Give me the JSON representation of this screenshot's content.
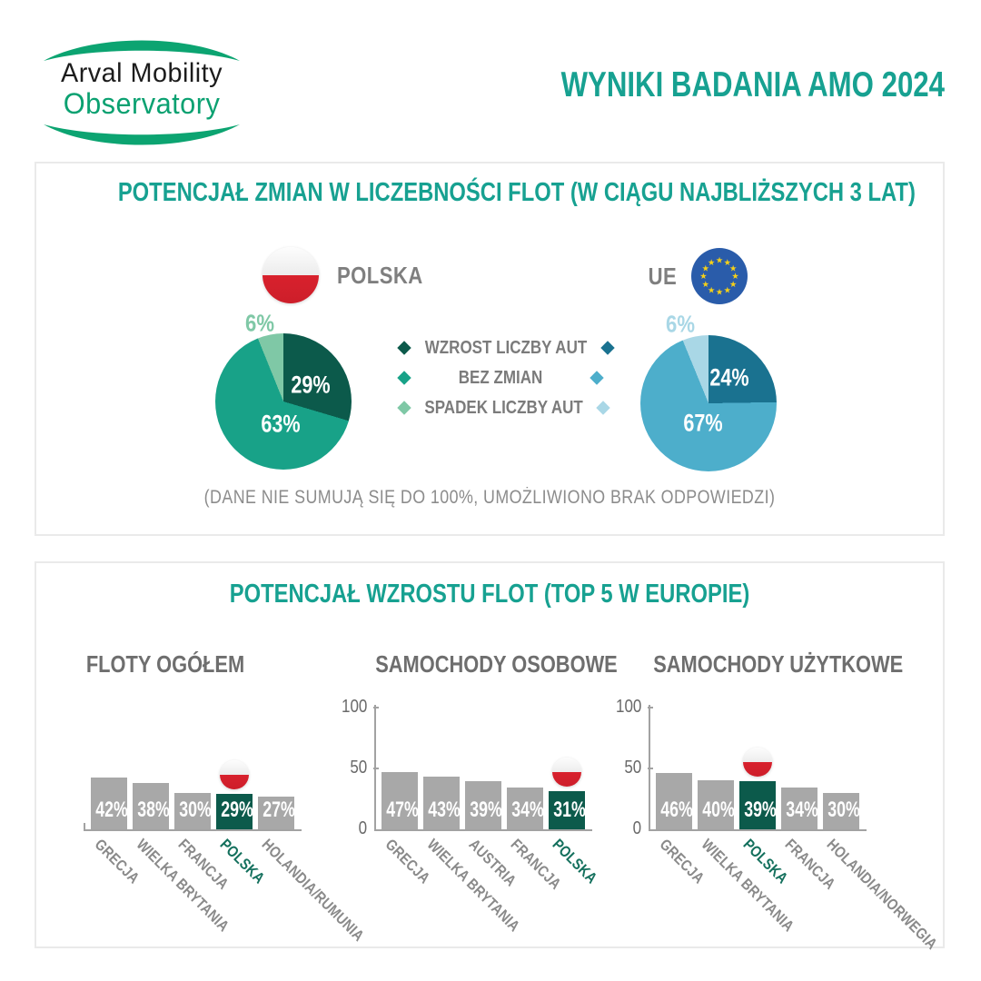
{
  "header": {
    "logo_line1": "Arval Mobility",
    "logo_line2": "Observatory",
    "title": "WYNIKI BADANIA AMO 2024"
  },
  "colors": {
    "teal_heading": "#17a191",
    "text_gray": "#7f7f7f",
    "bar_gray": "#a8a8a8",
    "bar_highlight": "#0c5a4b",
    "highlight_label": "#14705d",
    "axis_gray": "#a2a2a2",
    "logo_green": "#0ba171",
    "poland_flag_red": "#d8212d",
    "eu_flag_blue": "#2a5caa",
    "eu_star_yellow": "#f7d117"
  },
  "panel1": {
    "title": "POTENCJAŁ ZMIAN W LICZEBNOŚCI FLOT (W CIĄGU NAJBLIŻSZYCH 3 LAT)",
    "legend": [
      "WZROST LICZBY AUT",
      "BEZ ZMIAN",
      "SPADEK LICZBY AUT"
    ],
    "note": "(DANE NIE SUMUJĄ SIĘ DO 100%, UMOŻLIWIONO BRAK ODPOWIEDZI)"
  },
  "panel2": {
    "title": "POTENCJAŁ WZROSTU FLOT (TOP 5 W EUROPIE)"
  },
  "chart_data": [
    {
      "type": "pie",
      "country": "POLSKA",
      "segment_labels": [
        "WZROST LICZBY AUT",
        "BEZ ZMIAN",
        "SPADEK LICZBY AUT"
      ],
      "values": [
        29,
        63,
        6
      ],
      "value_labels": [
        "29%",
        "63%",
        "6%"
      ],
      "colors": [
        "#0c5a4b",
        "#18a288",
        "#7fc8a6"
      ],
      "start_angle_deg": 0,
      "note": "values do not sum to 100, no-answer allowed"
    },
    {
      "type": "pie",
      "country": "UE",
      "segment_labels": [
        "WZROST LICZBY AUT",
        "BEZ ZMIAN",
        "SPADEK LICZBY AUT"
      ],
      "values": [
        24,
        67,
        6
      ],
      "value_labels": [
        "24%",
        "67%",
        "6%"
      ],
      "colors": [
        "#1a7290",
        "#4daecb",
        "#a9d7e6"
      ],
      "start_angle_deg": 0,
      "note": "values do not sum to 100, no-answer allowed"
    },
    {
      "type": "bar",
      "title": "FLOTY OGÓŁEM",
      "categories": [
        "GRECJA",
        "WIELKA BRYTANIA",
        "FRANCJA",
        "POLSKA",
        "HOLANDIA/RUMUNIA"
      ],
      "values": [
        42,
        38,
        30,
        29,
        27
      ],
      "value_labels": [
        "42%",
        "38%",
        "30%",
        "29%",
        "27%"
      ],
      "highlight_index": 3,
      "ylim": [
        0,
        100
      ],
      "y_axis_visible": false
    },
    {
      "type": "bar",
      "title": "SAMOCHODY OSOBOWE",
      "categories": [
        "GRECJA",
        "WIELKA BRYTANIA",
        "AUSTRIA",
        "FRANCJA",
        "POLSKA"
      ],
      "values": [
        47,
        43,
        39,
        34,
        31
      ],
      "value_labels": [
        "47%",
        "43%",
        "39%",
        "34%",
        "31%"
      ],
      "highlight_index": 4,
      "ylim": [
        0,
        100
      ],
      "y_tick_labels": [
        "0",
        "50",
        "100"
      ],
      "y_axis_visible": true
    },
    {
      "type": "bar",
      "title": "SAMOCHODY UŻYTKOWE",
      "categories": [
        "GRECJA",
        "WIELKA BRYTANIA",
        "POLSKA",
        "FRANCJA",
        "HOLANDIA/NORWEGIA"
      ],
      "values": [
        46,
        40,
        39,
        34,
        30
      ],
      "value_labels": [
        "46%",
        "40%",
        "39%",
        "34%",
        "30%"
      ],
      "highlight_index": 2,
      "ylim": [
        0,
        100
      ],
      "y_tick_labels": [
        "0",
        "50",
        "100"
      ],
      "y_axis_visible": true
    }
  ]
}
